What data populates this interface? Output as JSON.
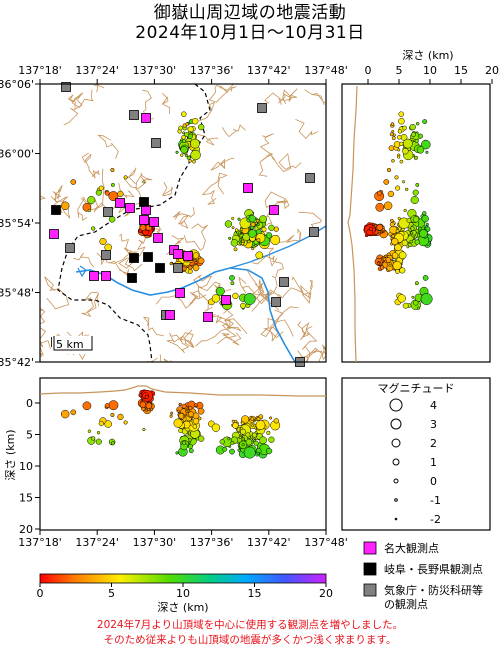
{
  "title": {
    "line1": "御嶽山周辺域の地震活動",
    "line2": "2024年10月1日～10月31日"
  },
  "map": {
    "lon_ticks": [
      "137°18'",
      "137°24'",
      "137°30'",
      "137°36'",
      "137°42'",
      "137°48'"
    ],
    "lat_ticks": [
      "36°06'",
      "36°00'",
      "35°54'",
      "35°48'",
      "35°42'"
    ],
    "scale_label": "5 km"
  },
  "depth_profile_right": {
    "axis_title": "深さ (km)",
    "ticks": [
      "0",
      "5",
      "10",
      "15",
      "20"
    ]
  },
  "depth_profile_bottom": {
    "axis_title": "深さ (km)",
    "ticks": [
      "0",
      "5",
      "10",
      "15",
      "20"
    ],
    "lon_ticks": [
      "137°18'",
      "137°24'",
      "137°30'",
      "137°36'",
      "137°42'",
      "137°48'"
    ]
  },
  "magnitude_legend": {
    "title": "マグニチュード",
    "labels": [
      "4",
      "3",
      "2",
      "1",
      "0",
      "-1",
      "-2"
    ]
  },
  "colorbar": {
    "ticks": [
      "0",
      "5",
      "10",
      "15",
      "20"
    ],
    "label": "深さ (km)"
  },
  "station_legend": [
    {
      "label": "名大観測点",
      "color": "#ff22ff"
    },
    {
      "label": "岐阜・長野県観測点",
      "color": "#000000"
    },
    {
      "label": "気象庁・防災科研等",
      "label2": "の観測点",
      "color": "#808080"
    }
  ],
  "notes": [
    "2024年7月より山頂域を中心に使用する観測点を増やしました。",
    "そのため従来よりも山頂域の地震が多くかつ浅く求まります。"
  ],
  "colors": {
    "river": "#2a8fe0",
    "topo": "#c8945a",
    "note_red": "#e8141c"
  }
}
